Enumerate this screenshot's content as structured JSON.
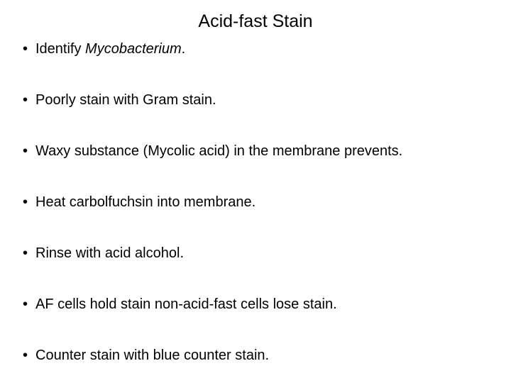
{
  "slide": {
    "title": "Acid-fast Stain",
    "title_fontsize": 25,
    "title_color": "#000000",
    "bullets": [
      {
        "prefix": "Identify ",
        "italic": "Mycobacterium",
        "suffix": "."
      },
      {
        "text": "Poorly stain with Gram stain."
      },
      {
        "text": "Waxy substance (Mycolic acid) in the membrane prevents."
      },
      {
        "text": "Heat carbolfuchsin into membrane."
      },
      {
        "text": "Rinse with acid alcohol."
      },
      {
        "text": "AF cells hold stain non-acid-fast cells lose stain."
      },
      {
        "text": "Counter stain with blue counter stain."
      }
    ],
    "bullet_fontsize": 20,
    "bullet_color": "#000000",
    "background_color": "#ffffff",
    "font_family": "Arial"
  }
}
